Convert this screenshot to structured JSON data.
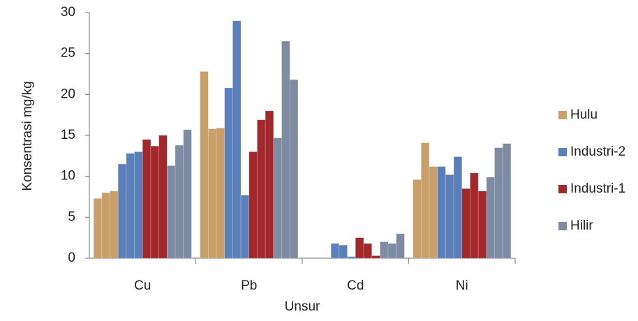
{
  "chart_data": {
    "type": "bar",
    "x_label": "Unsur",
    "y_label": "Konsentrasi mg/kg",
    "categories": [
      "Cu",
      "Pb",
      "Cd",
      "Ni"
    ],
    "series": [
      {
        "name": "Hulu",
        "color": "#c9a06a",
        "values": [
          [
            7.3,
            8.0,
            8.2
          ],
          [
            22.8,
            15.8,
            15.9
          ],
          [
            0,
            0,
            0
          ],
          [
            9.6,
            14.1,
            11.2
          ]
        ]
      },
      {
        "name": "Industri-2",
        "color": "#5b7fb8",
        "values": [
          [
            11.5,
            12.8,
            13.0
          ],
          [
            20.8,
            29.0,
            7.7
          ],
          [
            1.8,
            1.6,
            0.2
          ],
          [
            11.2,
            10.2,
            12.4
          ]
        ]
      },
      {
        "name": "Industri-1",
        "color": "#a3282b",
        "values": [
          [
            14.5,
            13.7,
            15.0
          ],
          [
            13.0,
            16.9,
            18.0
          ],
          [
            2.5,
            1.8,
            0.3
          ],
          [
            8.5,
            10.4,
            8.2
          ]
        ]
      },
      {
        "name": "Hilir",
        "color": "#7d8ba3",
        "values": [
          [
            11.3,
            13.8,
            15.7
          ],
          [
            14.7,
            26.5,
            21.8
          ],
          [
            2.0,
            1.8,
            3.0
          ],
          [
            9.9,
            13.5,
            14.0
          ]
        ]
      }
    ],
    "ylim": [
      0,
      30
    ],
    "yticks": [
      0,
      5,
      10,
      15,
      20,
      25,
      30
    ],
    "legend": "right"
  }
}
